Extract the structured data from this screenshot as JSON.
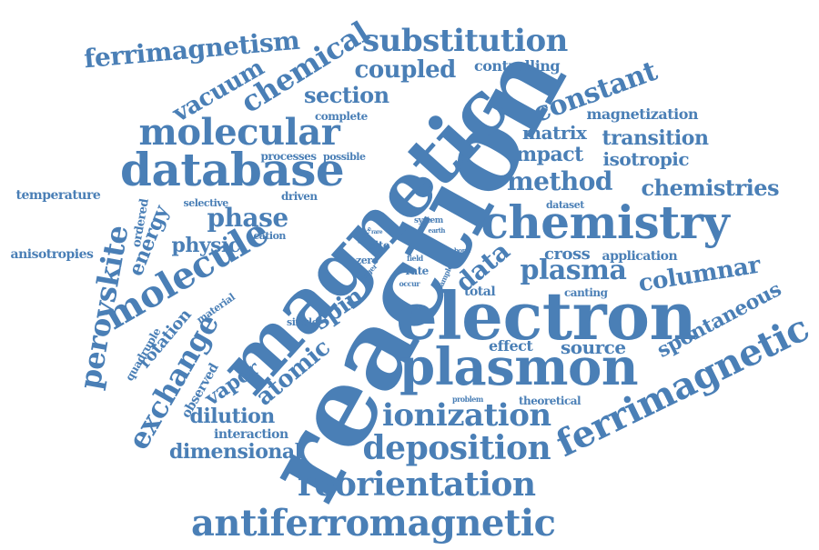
{
  "palette": {
    "word_color": "#4a7fb6",
    "background": "#ffffff"
  },
  "words": [
    "reaction",
    "magnetic",
    "electron",
    "plasmon",
    "chemistry",
    "database",
    "antiferromagnetic",
    "reorientation",
    "deposition",
    "ionization",
    "molecular",
    "ferrimagnetic",
    "molecule",
    "substitution",
    "exchange",
    "perovskite",
    "chemical",
    "ferrimagnetism",
    "constant",
    "spontaneous",
    "coupled",
    "method",
    "chemistries",
    "plasma",
    "columnar",
    "vacuum",
    "section",
    "phase",
    "data",
    "atomic",
    "dimensional",
    "spin",
    "source",
    "dilution",
    "energy",
    "physic",
    "impact",
    "isotropic",
    "matrix",
    "transition",
    "magnetization",
    "controlling",
    "vapor",
    "rotation",
    "cross",
    "effect",
    "theoretical",
    "observed",
    "anisotropies",
    "temperature",
    "total",
    "canting",
    "application",
    "quadruple",
    "interaction",
    "complete",
    "processes",
    "possible",
    "driven",
    "selective",
    "ordered",
    "cation",
    "material",
    "single",
    "dataset",
    "site",
    "rate",
    "zero",
    "field",
    "system",
    "earth",
    "lattice",
    "larger",
    "occur",
    "sample",
    "problem",
    "bond",
    "rare"
  ]
}
